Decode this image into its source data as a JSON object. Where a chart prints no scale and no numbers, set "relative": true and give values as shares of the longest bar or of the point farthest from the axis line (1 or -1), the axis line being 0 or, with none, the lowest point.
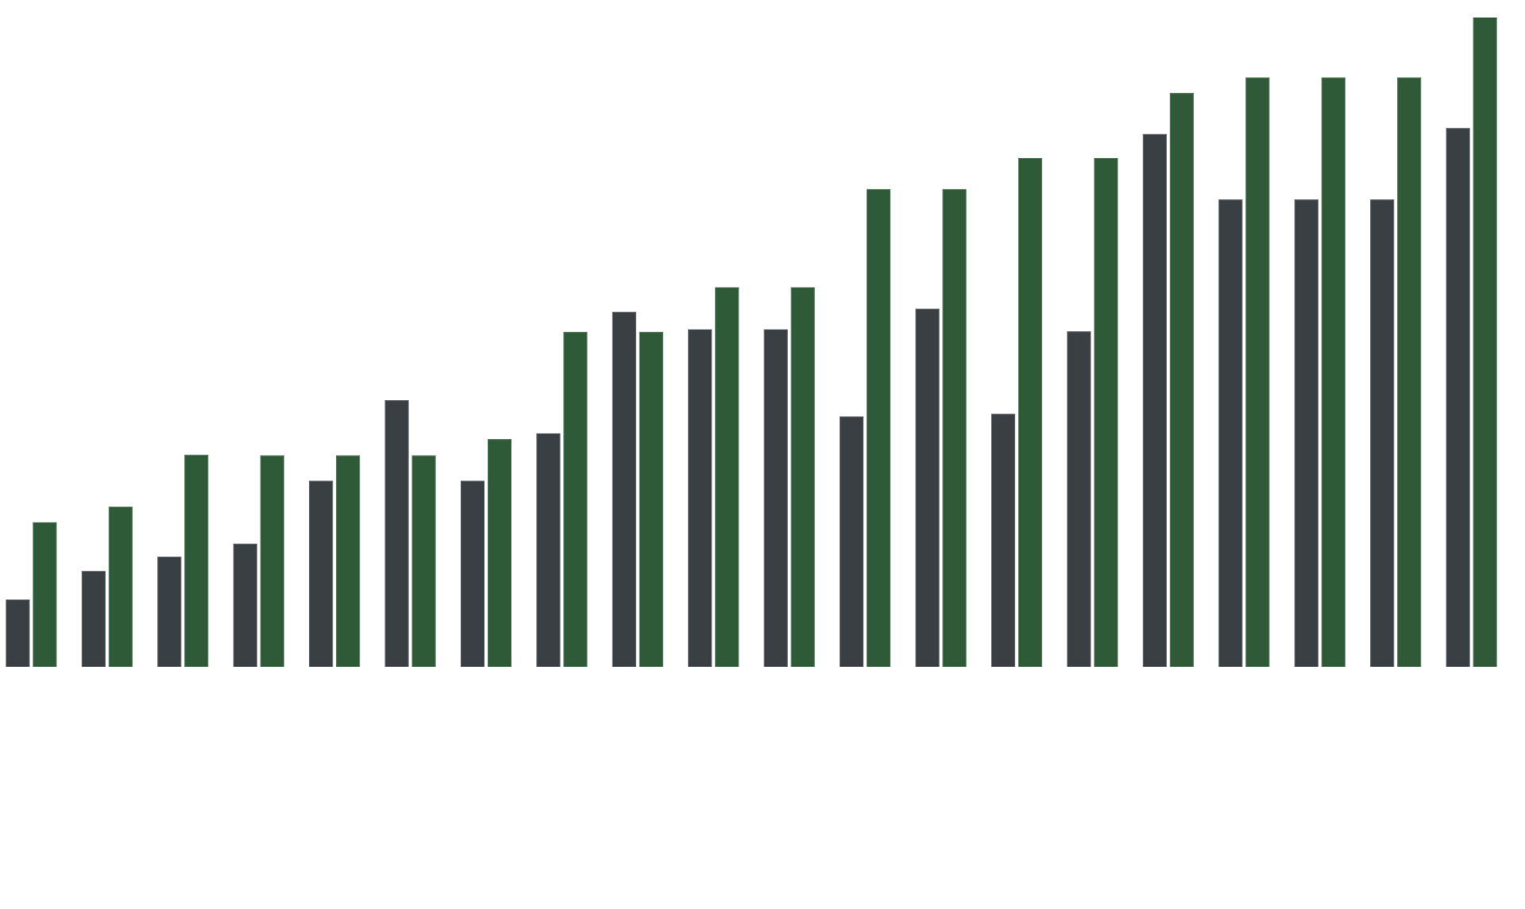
{
  "chart_data": {
    "type": "bar",
    "relative": true,
    "categories": [
      null,
      null,
      null,
      null,
      null,
      null,
      null,
      null,
      null,
      null,
      null,
      null,
      null,
      null,
      null,
      null,
      null,
      null,
      null,
      null
    ],
    "series": [
      {
        "color": "#3a3f44",
        "values": [
          0.103,
          0.147,
          0.169,
          0.189,
          0.286,
          0.41,
          0.286,
          0.359,
          0.546,
          0.519,
          0.519,
          0.385,
          0.551,
          0.389,
          0.516,
          0.82,
          0.719,
          0.719,
          0.719,
          0.829
        ]
      },
      {
        "color": "#2f5a37",
        "values": [
          0.222,
          0.246,
          0.326,
          0.325,
          0.325,
          0.325,
          0.35,
          0.515,
          0.515,
          0.584,
          0.584,
          0.735,
          0.735,
          0.783,
          0.783,
          0.883,
          0.907,
          0.907,
          0.907,
          1
        ]
      }
    ]
  }
}
